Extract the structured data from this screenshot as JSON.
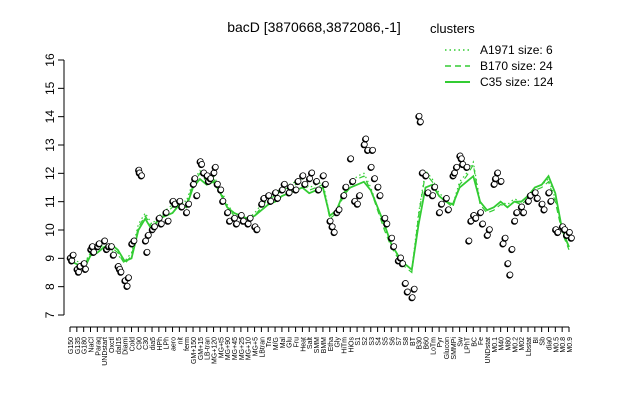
{
  "chart_data": {
    "type": "line",
    "title": "bacD [3870668,3872086,-1]",
    "xlabel": "",
    "ylabel": "",
    "ylim": [
      7,
      16
    ],
    "y_ticks": [
      7,
      8,
      9,
      10,
      11,
      12,
      13,
      14,
      15,
      16
    ],
    "grid": false,
    "legend": {
      "title": "clusters",
      "placement": "top-right",
      "color": "#33cc33",
      "entries": [
        {
          "label": "A1971 size: 6",
          "style": "dotted"
        },
        {
          "label": "B170 size: 24",
          "style": "dashed"
        },
        {
          "label": "C35 size: 124",
          "style": "solid"
        }
      ]
    },
    "x_tick_labels": [
      "G150",
      "G135",
      "G180",
      "NaCl",
      "Paraq",
      "UNDstart",
      "Oxctl",
      "dal15",
      "Diami",
      "Cold",
      "C90",
      "C30",
      "dia5",
      "HPh",
      "LPh",
      "aero",
      "nit",
      "ferm",
      "GM+150",
      "GM+15",
      "LB-tran",
      "MG+120",
      "MG+t5",
      "MG+90",
      "MG+45",
      "MG+25",
      "MG+10",
      "MG+5",
      "LBtran",
      "Tra",
      "M/G",
      "Mal",
      "Glu",
      "Fru",
      "Heat",
      "Salt",
      "SMM",
      "BMM",
      "Etha",
      "Gly",
      "HiTm",
      "HiOs",
      "S1",
      "S2",
      "S3",
      "S4",
      "S5",
      "S6",
      "S7",
      "S8",
      "BT",
      "B30",
      "B60",
      "LoTm",
      "Pyr",
      "Glucon",
      "SMMPi",
      "Sw",
      "LPhT",
      "BC",
      "Fe",
      "UNDstat",
      "M0.1",
      "M40",
      "M80",
      "M0.2",
      "M02",
      "Lbstat",
      "BI",
      "Sb",
      "dia0",
      "M0.5",
      "M0.8",
      "M0.9"
    ],
    "series": [
      {
        "style": "solid",
        "color": "#33cc33",
        "values": [
          8.9,
          8.8,
          8.6,
          9.1,
          9.2,
          9.4,
          9.5,
          9.3,
          8.9,
          9.0,
          10.0,
          10.4,
          10.0,
          10.4,
          10.5,
          10.6,
          10.9,
          10.8,
          11.5,
          11.8,
          11.6,
          11.7,
          11.3,
          10.8,
          10.6,
          10.5,
          10.4,
          10.5,
          10.7,
          10.9,
          11.0,
          11.2,
          11.3,
          11.4,
          11.5,
          11.3,
          11.4,
          11.5,
          10.5,
          10.7,
          11.3,
          11.5,
          11.6,
          11.7,
          11.4,
          10.8,
          10.2,
          9.5,
          9.1,
          8.8,
          8.6,
          10.2,
          11.5,
          11.6,
          11.2,
          11.0,
          10.9,
          11.5,
          11.7,
          11.9,
          11.0,
          10.7,
          10.8,
          11.0,
          10.8,
          11.0,
          11.0,
          11.2,
          11.5,
          11.6,
          11.9,
          11.3,
          10.0,
          9.4
        ]
      },
      {
        "style": "dashed",
        "color": "#33cc33",
        "values": [
          9.0,
          8.8,
          8.7,
          9.2,
          9.3,
          9.5,
          9.4,
          9.2,
          8.8,
          9.1,
          10.1,
          10.5,
          10.1,
          10.4,
          10.6,
          10.8,
          11.0,
          10.9,
          11.6,
          12.0,
          11.7,
          11.8,
          11.4,
          10.8,
          10.5,
          10.4,
          10.3,
          10.5,
          10.8,
          11.1,
          11.2,
          11.4,
          11.5,
          11.6,
          11.7,
          11.4,
          11.5,
          11.6,
          10.4,
          10.6,
          11.2,
          11.5,
          11.8,
          11.9,
          11.4,
          10.7,
          10.0,
          9.4,
          9.0,
          8.7,
          8.5,
          10.5,
          12.0,
          11.7,
          11.2,
          11.0,
          10.8,
          11.6,
          11.9,
          12.3,
          10.9,
          10.6,
          10.7,
          10.9,
          10.8,
          11.0,
          10.9,
          11.1,
          11.4,
          11.5,
          11.7,
          11.0,
          9.9,
          9.3
        ]
      },
      {
        "style": "dotted",
        "color": "#33cc33",
        "values": [
          9.1,
          8.9,
          8.8,
          9.2,
          9.2,
          9.4,
          9.3,
          9.1,
          8.9,
          9.2,
          10.2,
          10.6,
          10.2,
          10.5,
          10.7,
          10.9,
          11.1,
          11.0,
          11.7,
          12.1,
          11.8,
          11.9,
          11.5,
          10.9,
          10.6,
          10.5,
          10.4,
          10.6,
          10.9,
          11.2,
          11.3,
          11.5,
          11.6,
          11.7,
          11.8,
          11.5,
          11.6,
          11.7,
          10.5,
          10.7,
          11.3,
          11.6,
          11.9,
          12.0,
          11.5,
          10.8,
          10.1,
          9.5,
          9.1,
          8.8,
          8.6,
          10.6,
          12.1,
          11.8,
          11.3,
          11.1,
          10.9,
          11.7,
          12.0,
          12.4,
          11.0,
          10.7,
          10.8,
          11.0,
          10.9,
          11.1,
          11.0,
          11.2,
          11.5,
          11.6,
          11.8,
          11.1,
          10.0,
          9.4
        ]
      }
    ],
    "points": [
      [
        0,
        9.0
      ],
      [
        0.2,
        8.9
      ],
      [
        0.4,
        9.1
      ],
      [
        1,
        8.6
      ],
      [
        1.2,
        8.5
      ],
      [
        1.4,
        8.7
      ],
      [
        2,
        8.8
      ],
      [
        2.2,
        8.6
      ],
      [
        3,
        9.3
      ],
      [
        3.2,
        9.4
      ],
      [
        3.4,
        9.2
      ],
      [
        4,
        9.4
      ],
      [
        4.2,
        9.5
      ],
      [
        5,
        9.6
      ],
      [
        5.3,
        9.3
      ],
      [
        5.6,
        9.4
      ],
      [
        6,
        9.4
      ],
      [
        6.3,
        9.1
      ],
      [
        7,
        8.7
      ],
      [
        7.2,
        8.6
      ],
      [
        7.4,
        8.5
      ],
      [
        8,
        8.2
      ],
      [
        8.3,
        8.0
      ],
      [
        8.5,
        8.3
      ],
      [
        9,
        9.5
      ],
      [
        9.3,
        9.6
      ],
      [
        10,
        12.1
      ],
      [
        10.1,
        12.0
      ],
      [
        10.4,
        11.9
      ],
      [
        11,
        9.6
      ],
      [
        11.2,
        9.2
      ],
      [
        11.4,
        9.8
      ],
      [
        12,
        10.0
      ],
      [
        12.3,
        10.1
      ],
      [
        13,
        10.4
      ],
      [
        13.3,
        10.2
      ],
      [
        14,
        10.6
      ],
      [
        14.3,
        10.3
      ],
      [
        15,
        11.0
      ],
      [
        15.3,
        10.9
      ],
      [
        16,
        11.0
      ],
      [
        16.3,
        10.8
      ],
      [
        17,
        10.6
      ],
      [
        17.3,
        10.9
      ],
      [
        18,
        11.6
      ],
      [
        18.2,
        11.8
      ],
      [
        18.5,
        11.2
      ],
      [
        19,
        12.4
      ],
      [
        19.2,
        12.3
      ],
      [
        19.5,
        12.0
      ],
      [
        20,
        11.9
      ],
      [
        20.2,
        11.7
      ],
      [
        20.5,
        11.8
      ],
      [
        21,
        12.0
      ],
      [
        21.2,
        12.2
      ],
      [
        21.5,
        11.6
      ],
      [
        22,
        11.4
      ],
      [
        22.3,
        11.0
      ],
      [
        23,
        10.6
      ],
      [
        23.3,
        10.3
      ],
      [
        24,
        10.4
      ],
      [
        24.3,
        10.2
      ],
      [
        25,
        10.5
      ],
      [
        25.3,
        10.3
      ],
      [
        26,
        10.2
      ],
      [
        26.3,
        10.4
      ],
      [
        27,
        10.1
      ],
      [
        27.3,
        10.0
      ],
      [
        28,
        10.9
      ],
      [
        28.3,
        11.1
      ],
      [
        29,
        11.2
      ],
      [
        29.3,
        11.0
      ],
      [
        30,
        11.3
      ],
      [
        30.3,
        11.1
      ],
      [
        31,
        11.4
      ],
      [
        31.3,
        11.6
      ],
      [
        32,
        11.3
      ],
      [
        32.2,
        11.5
      ],
      [
        33,
        11.4
      ],
      [
        33.3,
        11.7
      ],
      [
        34,
        11.9
      ],
      [
        34.3,
        11.6
      ],
      [
        35,
        11.8
      ],
      [
        35.3,
        12.0
      ],
      [
        36,
        11.7
      ],
      [
        36.3,
        11.4
      ],
      [
        37,
        11.9
      ],
      [
        37.3,
        11.6
      ],
      [
        38,
        10.3
      ],
      [
        38.3,
        10.1
      ],
      [
        38.6,
        9.9
      ],
      [
        39,
        10.6
      ],
      [
        39.3,
        10.7
      ],
      [
        40,
        11.2
      ],
      [
        40.3,
        11.5
      ],
      [
        41,
        12.5
      ],
      [
        41.3,
        11.7
      ],
      [
        41.6,
        11.0
      ],
      [
        42,
        10.9
      ],
      [
        42.3,
        11.2
      ],
      [
        43,
        13.0
      ],
      [
        43.2,
        13.2
      ],
      [
        43.5,
        12.8
      ],
      [
        44,
        12.2
      ],
      [
        44.2,
        12.8
      ],
      [
        44.5,
        11.8
      ],
      [
        45,
        11.5
      ],
      [
        45.3,
        11.2
      ],
      [
        46,
        10.4
      ],
      [
        46.3,
        10.2
      ],
      [
        47,
        9.7
      ],
      [
        47.3,
        9.4
      ],
      [
        48,
        8.9
      ],
      [
        48.3,
        9.0
      ],
      [
        48.6,
        8.8
      ],
      [
        49,
        8.1
      ],
      [
        49.3,
        7.8
      ],
      [
        50,
        7.6
      ],
      [
        50.3,
        7.9
      ],
      [
        51,
        14.0
      ],
      [
        51.2,
        13.8
      ],
      [
        51.5,
        12.0
      ],
      [
        52,
        11.9
      ],
      [
        52.3,
        11.3
      ],
      [
        53,
        11.2
      ],
      [
        53.3,
        11.5
      ],
      [
        54,
        10.6
      ],
      [
        54.3,
        10.9
      ],
      [
        55,
        11.1
      ],
      [
        55.3,
        10.7
      ],
      [
        56,
        11.9
      ],
      [
        56.2,
        12.0
      ],
      [
        56.5,
        12.2
      ],
      [
        57,
        12.6
      ],
      [
        57.2,
        12.5
      ],
      [
        57.4,
        12.3
      ],
      [
        58,
        12.2
      ],
      [
        58.3,
        9.6
      ],
      [
        58.6,
        10.3
      ],
      [
        59,
        10.5
      ],
      [
        59.3,
        10.4
      ],
      [
        60,
        10.6
      ],
      [
        60.3,
        10.2
      ],
      [
        61,
        9.8
      ],
      [
        61.3,
        10.0
      ],
      [
        62,
        11.6
      ],
      [
        62.2,
        11.8
      ],
      [
        62.5,
        12.0
      ],
      [
        63,
        11.7
      ],
      [
        63.3,
        9.5
      ],
      [
        63.6,
        9.7
      ],
      [
        64,
        8.8
      ],
      [
        64.3,
        8.4
      ],
      [
        64.6,
        9.3
      ],
      [
        65,
        10.3
      ],
      [
        65.3,
        10.6
      ],
      [
        66,
        10.8
      ],
      [
        66.3,
        10.6
      ],
      [
        67,
        11.0
      ],
      [
        67.3,
        11.2
      ],
      [
        68,
        11.3
      ],
      [
        68.3,
        11.1
      ],
      [
        69,
        10.9
      ],
      [
        69.3,
        10.7
      ],
      [
        70,
        11.3
      ],
      [
        70.3,
        11.0
      ],
      [
        71,
        10.0
      ],
      [
        71.3,
        9.9
      ],
      [
        72,
        10.1
      ],
      [
        72.3,
        10.0
      ],
      [
        72.6,
        9.8
      ],
      [
        73,
        9.9
      ],
      [
        73.3,
        9.7
      ]
    ]
  }
}
